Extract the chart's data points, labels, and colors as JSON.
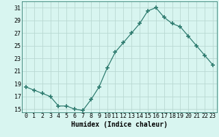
{
  "x": [
    0,
    1,
    2,
    3,
    4,
    5,
    6,
    7,
    8,
    9,
    10,
    11,
    12,
    13,
    14,
    15,
    16,
    17,
    18,
    19,
    20,
    21,
    22,
    23
  ],
  "y": [
    18.5,
    18.0,
    17.5,
    17.0,
    15.5,
    15.5,
    15.0,
    14.8,
    16.5,
    18.5,
    21.5,
    24.0,
    25.5,
    27.0,
    28.5,
    30.5,
    31.0,
    29.5,
    28.5,
    28.0,
    26.5,
    25.0,
    23.5,
    22.0
  ],
  "line_color": "#2d7a6e",
  "marker": "+",
  "marker_size": 4,
  "bg_color": "#d8f5f0",
  "grid_color": "#b8d8d2",
  "xlabel": "Humidex (Indice chaleur)",
  "ylabel": "",
  "xlim": [
    -0.5,
    23.5
  ],
  "ylim": [
    14.5,
    32
  ],
  "yticks": [
    15,
    17,
    19,
    21,
    23,
    25,
    27,
    29,
    31
  ],
  "xtick_labels": [
    "0",
    "1",
    "2",
    "3",
    "4",
    "5",
    "6",
    "7",
    "8",
    "9",
    "10",
    "11",
    "12",
    "13",
    "14",
    "15",
    "16",
    "17",
    "18",
    "19",
    "20",
    "21",
    "22",
    "23"
  ],
  "label_fontsize": 7,
  "tick_fontsize": 6
}
